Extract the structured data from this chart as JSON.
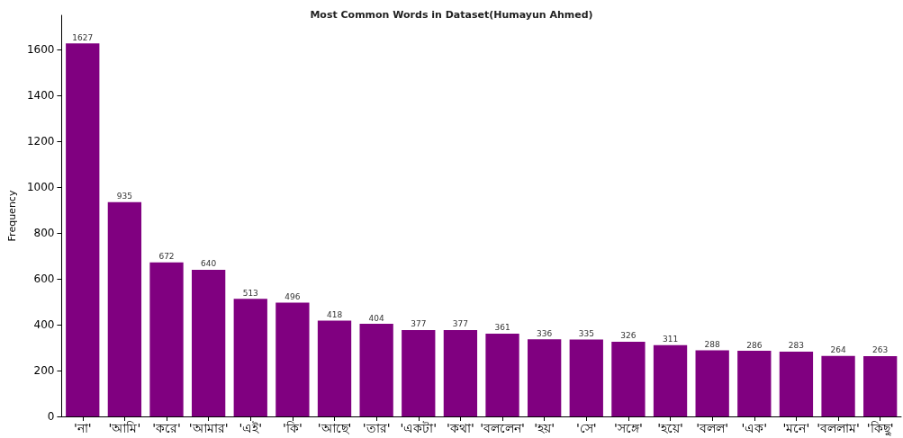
{
  "chart_data": {
    "type": "bar",
    "title": "Most Common Words in Dataset(Humayun Ahmed)",
    "ylabel": "Frequency",
    "categories": [
      "'না'",
      "'আমি'",
      "'করে'",
      "'আমার'",
      "'এই'",
      "'কি'",
      "'আছে'",
      "'তার'",
      "'একটা'",
      "'কথা'",
      "'বললেন'",
      "'হয়'",
      "'সে'",
      "'সঙ্গে'",
      "'হয়ে'",
      "'বলল'",
      "'এক'",
      "'মনে'",
      "'বললাম'",
      "'কিছু'"
    ],
    "values": [
      1627,
      935,
      672,
      640,
      513,
      496,
      418,
      404,
      377,
      377,
      361,
      336,
      335,
      326,
      311,
      288,
      286,
      283,
      264,
      263
    ],
    "color": "#800080",
    "ylim": [
      0,
      1750
    ],
    "yticks": [
      0,
      200,
      400,
      600,
      800,
      1000,
      1200,
      1400,
      1600
    ],
    "data_labels": true
  }
}
